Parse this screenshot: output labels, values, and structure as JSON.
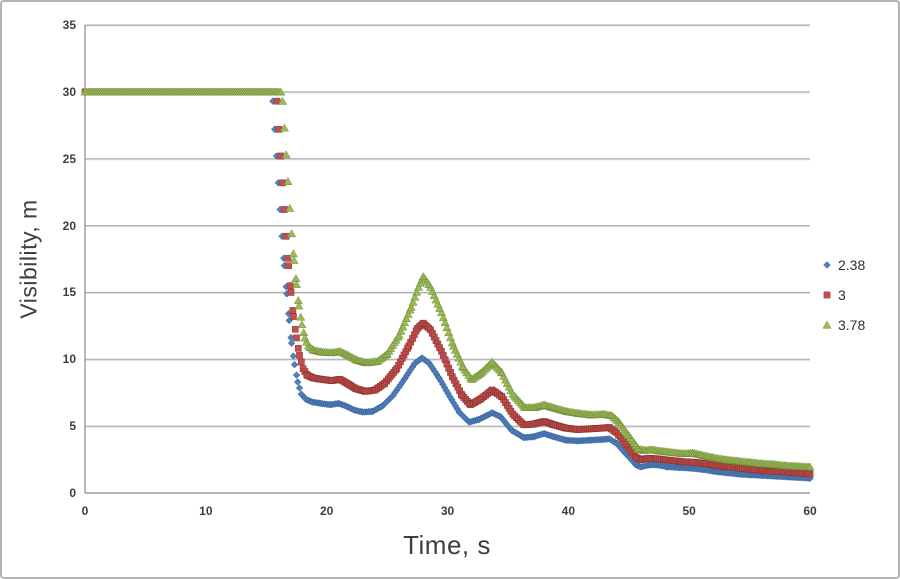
{
  "chart_data": {
    "type": "scatter",
    "title": "",
    "xlabel": "Time, s",
    "ylabel": "Visibility, m",
    "xlim": [
      0,
      60
    ],
    "ylim": [
      0,
      35
    ],
    "x_ticks": [
      0,
      10,
      20,
      30,
      40,
      50,
      60
    ],
    "y_ticks": [
      0,
      5,
      10,
      15,
      20,
      25,
      30,
      35
    ],
    "grid": "horizontal",
    "legend_position": "right-middle",
    "marker_step_s": 0.15,
    "colors": {
      "gridline": "#a6a6a6",
      "gridline_shadow": "#dcdcdc",
      "axis_line": "#8c8c8c",
      "tick_text": "#3d3d3d",
      "axis_title_text": "#3f3f3f"
    },
    "series": [
      {
        "name": "2.38",
        "marker": "diamond",
        "color": "#4f81bd",
        "edge": "#3a639a",
        "points": [
          [
            0,
            30
          ],
          [
            15.4,
            30
          ],
          [
            15.55,
            29.3
          ],
          [
            15.7,
            27.2
          ],
          [
            15.85,
            25.2
          ],
          [
            16,
            23.2
          ],
          [
            16.15,
            21.2
          ],
          [
            16.3,
            19.2
          ],
          [
            16.5,
            17
          ],
          [
            16.7,
            14.9
          ],
          [
            16.9,
            12.9
          ],
          [
            17.1,
            11.2
          ],
          [
            17.35,
            9.6
          ],
          [
            17.6,
            8.3
          ],
          [
            17.9,
            7.4
          ],
          [
            18.3,
            7
          ],
          [
            18.8,
            6.8
          ],
          [
            19.5,
            6.7
          ],
          [
            20.3,
            6.6
          ],
          [
            21,
            6.7
          ],
          [
            21.6,
            6.5
          ],
          [
            22.3,
            6.2
          ],
          [
            23,
            6.05
          ],
          [
            23.8,
            6.1
          ],
          [
            24.6,
            6.5
          ],
          [
            25.5,
            7.3
          ],
          [
            26.5,
            8.6
          ],
          [
            27.3,
            9.7
          ],
          [
            27.9,
            10.1
          ],
          [
            28.5,
            9.7
          ],
          [
            29.3,
            8.6
          ],
          [
            30.2,
            7.2
          ],
          [
            31,
            6
          ],
          [
            31.8,
            5.3
          ],
          [
            32.6,
            5.5
          ],
          [
            33.7,
            6
          ],
          [
            34.4,
            5.7
          ],
          [
            35.3,
            4.7
          ],
          [
            36.3,
            4.15
          ],
          [
            37.1,
            4.2
          ],
          [
            38,
            4.45
          ],
          [
            38.8,
            4.2
          ],
          [
            39.8,
            3.95
          ],
          [
            40.8,
            3.9
          ],
          [
            41.8,
            3.95
          ],
          [
            42.8,
            4
          ],
          [
            43.4,
            4.05
          ],
          [
            44,
            3.7
          ],
          [
            44.8,
            2.9
          ],
          [
            45.6,
            2.1
          ],
          [
            46,
            1.95
          ],
          [
            46.7,
            2.1
          ],
          [
            47.4,
            2.1
          ],
          [
            48.2,
            1.95
          ],
          [
            49.2,
            1.9
          ],
          [
            50.2,
            1.85
          ],
          [
            51.2,
            1.75
          ],
          [
            52.2,
            1.6
          ],
          [
            53.2,
            1.5
          ],
          [
            54.2,
            1.4
          ],
          [
            55.2,
            1.35
          ],
          [
            56.2,
            1.3
          ],
          [
            57.2,
            1.25
          ],
          [
            58.2,
            1.2
          ],
          [
            59.2,
            1.15
          ],
          [
            60,
            1.1
          ]
        ]
      },
      {
        "name": "3",
        "marker": "square",
        "color": "#c0504d",
        "edge": "#943634",
        "points": [
          [
            0,
            30
          ],
          [
            15.75,
            30
          ],
          [
            15.9,
            29.3
          ],
          [
            16.05,
            27.2
          ],
          [
            16.2,
            25.2
          ],
          [
            16.35,
            23.2
          ],
          [
            16.5,
            21.2
          ],
          [
            16.65,
            19.2
          ],
          [
            16.85,
            17
          ],
          [
            17.05,
            15
          ],
          [
            17.25,
            13.2
          ],
          [
            17.5,
            11.6
          ],
          [
            17.75,
            10.3
          ],
          [
            18.05,
            9.3
          ],
          [
            18.4,
            8.8
          ],
          [
            18.9,
            8.6
          ],
          [
            19.6,
            8.5
          ],
          [
            20.4,
            8.4
          ],
          [
            21.1,
            8.5
          ],
          [
            21.7,
            8.2
          ],
          [
            22.4,
            7.8
          ],
          [
            23.2,
            7.6
          ],
          [
            24,
            7.7
          ],
          [
            24.8,
            8.2
          ],
          [
            25.8,
            9.3
          ],
          [
            26.8,
            11
          ],
          [
            27.5,
            12.3
          ],
          [
            28,
            12.7
          ],
          [
            28.6,
            12.2
          ],
          [
            29.5,
            10.6
          ],
          [
            30.4,
            8.7
          ],
          [
            31.2,
            7.3
          ],
          [
            31.9,
            6.6
          ],
          [
            32.7,
            7
          ],
          [
            33.7,
            7.7
          ],
          [
            34.5,
            7.2
          ],
          [
            35.4,
            5.9
          ],
          [
            36.3,
            5.1
          ],
          [
            37.1,
            5.15
          ],
          [
            38,
            5.35
          ],
          [
            38.8,
            5.1
          ],
          [
            39.8,
            4.85
          ],
          [
            40.8,
            4.75
          ],
          [
            41.8,
            4.8
          ],
          [
            42.8,
            4.85
          ],
          [
            43.4,
            4.9
          ],
          [
            44,
            4.5
          ],
          [
            44.8,
            3.6
          ],
          [
            45.6,
            2.65
          ],
          [
            46,
            2.5
          ],
          [
            46.6,
            2.6
          ],
          [
            47.4,
            2.55
          ],
          [
            48.3,
            2.45
          ],
          [
            49.3,
            2.35
          ],
          [
            50.3,
            2.3
          ],
          [
            51.3,
            2.2
          ],
          [
            52.3,
            2.05
          ],
          [
            53.3,
            1.95
          ],
          [
            54.3,
            1.85
          ],
          [
            55.3,
            1.75
          ],
          [
            56.3,
            1.65
          ],
          [
            57.3,
            1.6
          ],
          [
            58.3,
            1.55
          ],
          [
            59.3,
            1.48
          ],
          [
            60,
            1.42
          ]
        ]
      },
      {
        "name": "3.78",
        "marker": "triangle",
        "color": "#9bbb59",
        "edge": "#76923c",
        "points": [
          [
            0,
            30
          ],
          [
            16.2,
            30
          ],
          [
            16.35,
            29.3
          ],
          [
            16.5,
            27.3
          ],
          [
            16.65,
            25.3
          ],
          [
            16.8,
            23.3
          ],
          [
            16.95,
            21.3
          ],
          [
            17.1,
            19.4
          ],
          [
            17.3,
            17.4
          ],
          [
            17.5,
            15.6
          ],
          [
            17.7,
            14
          ],
          [
            17.95,
            12.6
          ],
          [
            18.2,
            11.6
          ],
          [
            18.5,
            11
          ],
          [
            18.9,
            10.7
          ],
          [
            19.6,
            10.55
          ],
          [
            20.4,
            10.5
          ],
          [
            21.1,
            10.6
          ],
          [
            21.8,
            10.3
          ],
          [
            22.5,
            9.95
          ],
          [
            23.3,
            9.75
          ],
          [
            24.2,
            9.85
          ],
          [
            25,
            10.4
          ],
          [
            26,
            11.8
          ],
          [
            27,
            13.9
          ],
          [
            27.6,
            15.4
          ],
          [
            28,
            16.2
          ],
          [
            28.6,
            15.4
          ],
          [
            29.5,
            13.5
          ],
          [
            30.5,
            11
          ],
          [
            31.3,
            9.4
          ],
          [
            32,
            8.5
          ],
          [
            32.8,
            9
          ],
          [
            33.7,
            9.8
          ],
          [
            34.5,
            9
          ],
          [
            35.4,
            7.4
          ],
          [
            36.4,
            6.4
          ],
          [
            37.2,
            6.4
          ],
          [
            38,
            6.6
          ],
          [
            38.9,
            6.35
          ],
          [
            39.9,
            6.1
          ],
          [
            40.9,
            5.95
          ],
          [
            41.9,
            5.85
          ],
          [
            42.9,
            5.9
          ],
          [
            43.6,
            5.8
          ],
          [
            44.2,
            5.3
          ],
          [
            45,
            4.3
          ],
          [
            45.8,
            3.3
          ],
          [
            46.3,
            3.2
          ],
          [
            46.9,
            3.25
          ],
          [
            47.6,
            3.15
          ],
          [
            48.5,
            3.05
          ],
          [
            49.5,
            2.95
          ],
          [
            50.3,
            3
          ],
          [
            51,
            2.85
          ],
          [
            52,
            2.65
          ],
          [
            53,
            2.5
          ],
          [
            54,
            2.4
          ],
          [
            55,
            2.3
          ],
          [
            56,
            2.2
          ],
          [
            57,
            2.15
          ],
          [
            58,
            2.05
          ],
          [
            59,
            2
          ],
          [
            60,
            1.95
          ]
        ]
      }
    ]
  }
}
